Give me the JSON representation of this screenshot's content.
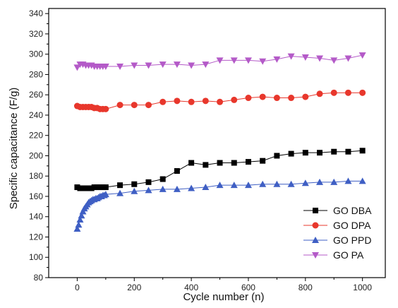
{
  "chart_data": {
    "type": "line",
    "title": "",
    "xlabel": "Cycle number (n)",
    "ylabel": "Specific capacitance (F/g)",
    "xlim": [
      -100,
      1080
    ],
    "ylim": [
      80,
      345
    ],
    "xticks": [
      0,
      200,
      400,
      600,
      800,
      1000
    ],
    "yticks": [
      80,
      100,
      120,
      140,
      160,
      180,
      200,
      220,
      240,
      260,
      280,
      300,
      320,
      340
    ],
    "grid": false,
    "legend_position": "bottom-right",
    "series": [
      {
        "name": "GO DBA",
        "color": "#000000",
        "marker": "square",
        "x": [
          0,
          10,
          20,
          30,
          40,
          50,
          60,
          70,
          80,
          90,
          100,
          150,
          200,
          250,
          300,
          350,
          400,
          450,
          500,
          550,
          600,
          650,
          700,
          750,
          800,
          850,
          900,
          950,
          1000
        ],
        "y": [
          169,
          168,
          168,
          168,
          168,
          168,
          169,
          169,
          169,
          169,
          169,
          171,
          172,
          174,
          177,
          185,
          193,
          191,
          193,
          193,
          194,
          195,
          200,
          202,
          203,
          203,
          204,
          204,
          205
        ]
      },
      {
        "name": "GO DPA",
        "color": "#e8372c",
        "marker": "circle",
        "x": [
          0,
          10,
          20,
          30,
          40,
          50,
          60,
          70,
          80,
          90,
          100,
          150,
          200,
          250,
          300,
          350,
          400,
          450,
          500,
          550,
          600,
          650,
          700,
          750,
          800,
          850,
          900,
          950,
          1000
        ],
        "y": [
          249,
          248,
          248,
          248,
          248,
          248,
          247,
          247,
          246,
          246,
          246,
          250,
          250,
          250,
          253,
          254,
          253,
          254,
          253,
          255,
          257,
          258,
          257,
          257,
          258,
          261,
          262,
          262,
          262
        ]
      },
      {
        "name": "GO PPD",
        "color": "#3f5fc4",
        "marker": "triangle-up",
        "x": [
          0,
          5,
          10,
          15,
          20,
          25,
          30,
          35,
          40,
          45,
          50,
          55,
          60,
          65,
          70,
          75,
          80,
          85,
          90,
          95,
          100,
          150,
          200,
          250,
          300,
          350,
          400,
          450,
          500,
          550,
          600,
          650,
          700,
          750,
          800,
          850,
          900,
          950,
          1000
        ],
        "y": [
          128,
          132,
          137,
          141,
          145,
          148,
          150,
          152,
          154,
          155,
          156,
          157,
          157,
          158,
          158,
          159,
          160,
          160,
          161,
          161,
          162,
          163,
          165,
          166,
          167,
          167,
          168,
          169,
          171,
          171,
          171,
          172,
          172,
          172,
          173,
          174,
          174,
          175,
          175
        ]
      },
      {
        "name": "GO PA",
        "color": "#b45ac8",
        "marker": "triangle-down",
        "x": [
          0,
          10,
          20,
          30,
          40,
          50,
          60,
          70,
          80,
          90,
          100,
          150,
          200,
          250,
          300,
          350,
          400,
          450,
          500,
          550,
          600,
          650,
          700,
          750,
          800,
          850,
          900,
          950,
          1000
        ],
        "y": [
          287,
          290,
          290,
          289,
          289,
          289,
          288,
          288,
          288,
          288,
          288,
          288,
          289,
          289,
          290,
          290,
          289,
          290,
          294,
          294,
          294,
          293,
          295,
          298,
          297,
          296,
          294,
          296,
          299
        ]
      }
    ]
  }
}
